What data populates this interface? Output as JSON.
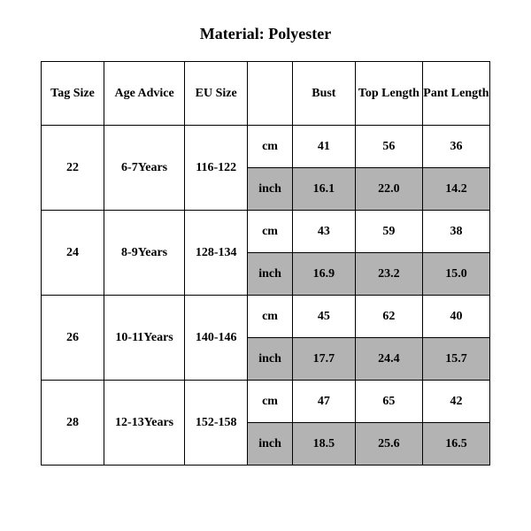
{
  "title": "Material: Polyester",
  "table": {
    "columns": [
      "Tag Size",
      "Age Advice",
      "EU Size",
      "",
      "Bust",
      "Top Length",
      "Pant Length"
    ],
    "unit_cm": "cm",
    "unit_inch": "inch",
    "shade_color": "#b3b3b3",
    "border_color": "#000000",
    "font_family": "Times New Roman",
    "header_fontsize": 14,
    "cell_fontsize": 14,
    "rows": [
      {
        "tag": "22",
        "age": "6-7Years",
        "eu": "116-122",
        "cm": {
          "bust": "41",
          "top": "56",
          "pant": "36"
        },
        "inch": {
          "bust": "16.1",
          "top": "22.0",
          "pant": "14.2"
        }
      },
      {
        "tag": "24",
        "age": "8-9Years",
        "eu": "128-134",
        "cm": {
          "bust": "43",
          "top": "59",
          "pant": "38"
        },
        "inch": {
          "bust": "16.9",
          "top": "23.2",
          "pant": "15.0"
        }
      },
      {
        "tag": "26",
        "age": "10-11Years",
        "eu": "140-146",
        "cm": {
          "bust": "45",
          "top": "62",
          "pant": "40"
        },
        "inch": {
          "bust": "17.7",
          "top": "24.4",
          "pant": "15.7"
        }
      },
      {
        "tag": "28",
        "age": "12-13Years",
        "eu": "152-158",
        "cm": {
          "bust": "47",
          "top": "65",
          "pant": "42"
        },
        "inch": {
          "bust": "18.5",
          "top": "25.6",
          "pant": "16.5"
        }
      }
    ]
  }
}
